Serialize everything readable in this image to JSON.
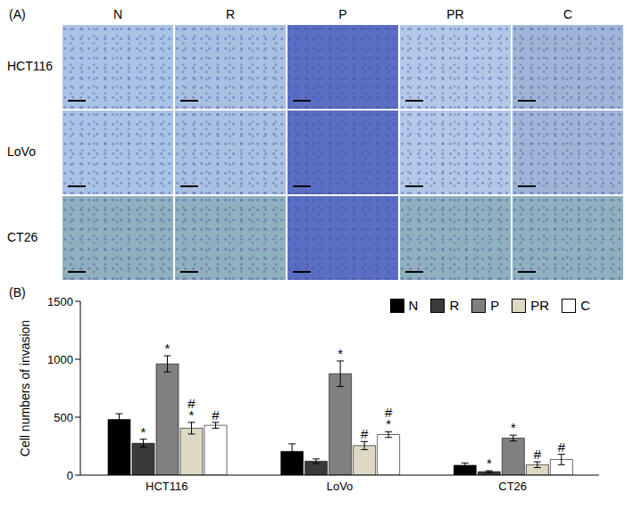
{
  "panel_a": {
    "label": "(A)",
    "columns": [
      "N",
      "R",
      "P",
      "PR",
      "C"
    ],
    "rows": [
      "HCT116",
      "LoVo",
      "CT26"
    ]
  },
  "chart_data": {
    "type": "bar",
    "annotations": [
      "(B)"
    ],
    "y_label": "Cell numbers of invasion",
    "categories": [
      "HCT116",
      "LoVo",
      "CT26"
    ],
    "series": [
      {
        "name": "N",
        "color": "#000000",
        "values": [
          480,
          205,
          85
        ],
        "errors": [
          50,
          65,
          20
        ],
        "significance": [
          null,
          null,
          null
        ]
      },
      {
        "name": "R",
        "color": "#3a3a3a",
        "values": [
          275,
          120,
          30
        ],
        "errors": [
          35,
          20,
          8
        ],
        "significance": [
          "*",
          null,
          "*"
        ]
      },
      {
        "name": "P",
        "color": "#808080",
        "values": [
          960,
          875,
          320
        ],
        "errors": [
          70,
          110,
          25
        ],
        "significance": [
          "*",
          "*",
          "*"
        ]
      },
      {
        "name": "PR",
        "color": "#ddd9c4",
        "values": [
          405,
          255,
          90
        ],
        "errors": [
          50,
          35,
          25
        ],
        "significance": [
          "#*",
          "#",
          "#"
        ]
      },
      {
        "name": "C",
        "color": "#ffffff",
        "values": [
          430,
          350,
          135
        ],
        "errors": [
          25,
          25,
          45
        ],
        "significance": [
          "#",
          "#*",
          "#"
        ]
      }
    ],
    "ylim": [
      0,
      1500
    ],
    "yticks": [
      0,
      500,
      1000,
      1500
    ],
    "grid": false,
    "legend": "top-right"
  }
}
